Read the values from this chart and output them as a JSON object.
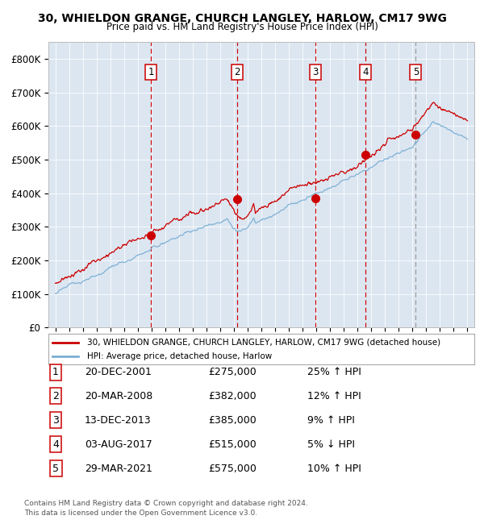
{
  "title": "30, WHIELDON GRANGE, CHURCH LANGLEY, HARLOW, CM17 9WG",
  "subtitle": "Price paid vs. HM Land Registry's House Price Index (HPI)",
  "legend_line1": "30, WHIELDON GRANGE, CHURCH LANGLEY, HARLOW, CM17 9WG (detached house)",
  "legend_line2": "HPI: Average price, detached house, Harlow",
  "footer1": "Contains HM Land Registry data © Crown copyright and database right 2024.",
  "footer2": "This data is licensed under the Open Government Licence v3.0.",
  "sales": [
    {
      "num": 1,
      "date": "20-DEC-2001",
      "price": 275000,
      "pct": "25%",
      "dir": "↑",
      "x": 2001.97
    },
    {
      "num": 2,
      "date": "20-MAR-2008",
      "price": 382000,
      "pct": "12%",
      "dir": "↑",
      "x": 2008.22
    },
    {
      "num": 3,
      "date": "13-DEC-2013",
      "price": 385000,
      "pct": "9%",
      "dir": "↑",
      "x": 2013.95
    },
    {
      "num": 4,
      "date": "03-AUG-2017",
      "price": 515000,
      "pct": "5%",
      "dir": "↓",
      "x": 2017.59
    },
    {
      "num": 5,
      "date": "29-MAR-2021",
      "price": 575000,
      "pct": "10%",
      "dir": "↑",
      "x": 2021.24
    }
  ],
  "ylim": [
    0,
    850000
  ],
  "xlim_start": 1994.5,
  "xlim_end": 2025.5,
  "bg_color": "#dce6f1",
  "red_line_color": "#cc0000",
  "blue_line_color": "#7bafd4",
  "dashed_red": "#cc0000",
  "dashed_grey": "#999999",
  "marker_color": "#cc0000",
  "box_color": "#cc0000",
  "yticks": [
    0,
    100000,
    200000,
    300000,
    400000,
    500000,
    600000,
    700000,
    800000
  ],
  "ylabels": [
    "£0",
    "£100K",
    "£200K",
    "£300K",
    "£400K",
    "£500K",
    "£600K",
    "£700K",
    "£800K"
  ],
  "table_data": [
    [
      "1",
      "20-DEC-2001",
      "£275,000",
      "25% ↑ HPI"
    ],
    [
      "2",
      "20-MAR-2008",
      "£382,000",
      "12% ↑ HPI"
    ],
    [
      "3",
      "13-DEC-2013",
      "£385,000",
      "9% ↑ HPI"
    ],
    [
      "4",
      "03-AUG-2017",
      "£515,000",
      "5% ↓ HPI"
    ],
    [
      "5",
      "29-MAR-2021",
      "£575,000",
      "10% ↑ HPI"
    ]
  ]
}
